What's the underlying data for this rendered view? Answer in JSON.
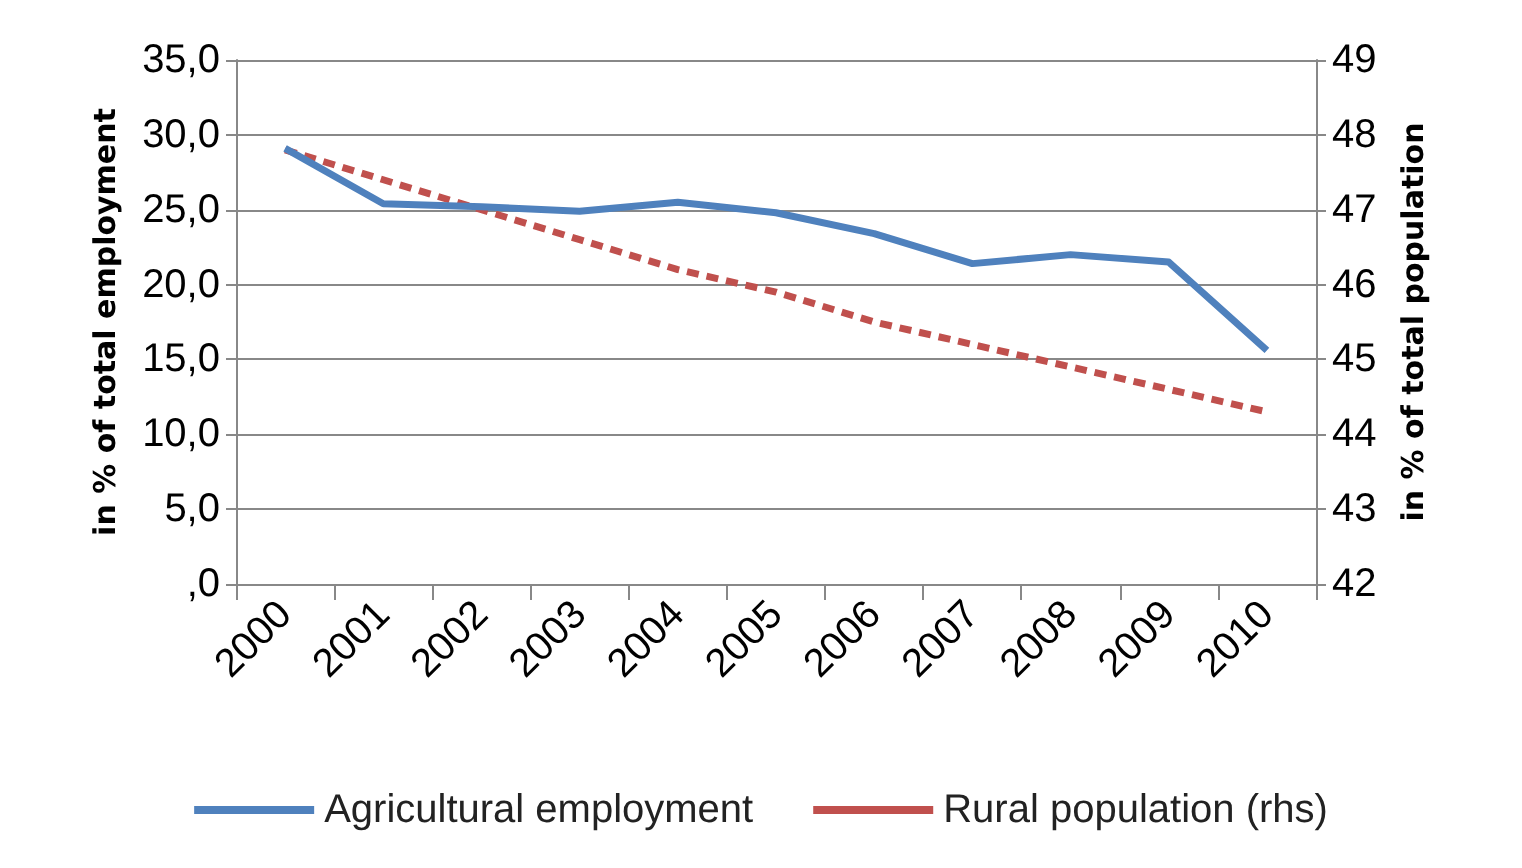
{
  "chart_data": {
    "type": "line",
    "ylabel": "in % of total employment",
    "y2label": "in % of total population",
    "categories": [
      "2000",
      "2001",
      "2002",
      "2003",
      "2004",
      "2005",
      "2006",
      "2007",
      "2008",
      "2009",
      "2010"
    ],
    "series": [
      {
        "name": "Agricultural employment",
        "color": "#4f81bd",
        "values": [
          29.1,
          25.4,
          25.2,
          24.9,
          25.5,
          24.8,
          23.4,
          21.4,
          22.0,
          21.5,
          15.6
        ],
        "line_style": "solid"
      },
      {
        "name": "Rural population (rhs)",
        "color": "#c0504d",
        "axis": "y2",
        "values": [
          47.8,
          47.4,
          47.0,
          46.6,
          46.2,
          45.9,
          45.5,
          45.2,
          44.9,
          44.6,
          44.3
        ],
        "line_style": "dashed"
      }
    ],
    "ylim": [
      0,
      35
    ],
    "yticks": [
      {
        "value": 0,
        "label": ",0"
      },
      {
        "value": 5,
        "label": "5,0"
      },
      {
        "value": 10,
        "label": "10,0"
      },
      {
        "value": 15,
        "label": "15,0"
      },
      {
        "value": 20,
        "label": "20,0"
      },
      {
        "value": 25,
        "label": "25,0"
      },
      {
        "value": 30,
        "label": "30,0"
      },
      {
        "value": 35,
        "label": "35,0"
      }
    ],
    "y2lim": [
      42,
      49
    ],
    "y2ticks": [
      42,
      43,
      44,
      45,
      46,
      47,
      48,
      49
    ],
    "grid": "y",
    "legend": "bottom",
    "marker": "none"
  }
}
